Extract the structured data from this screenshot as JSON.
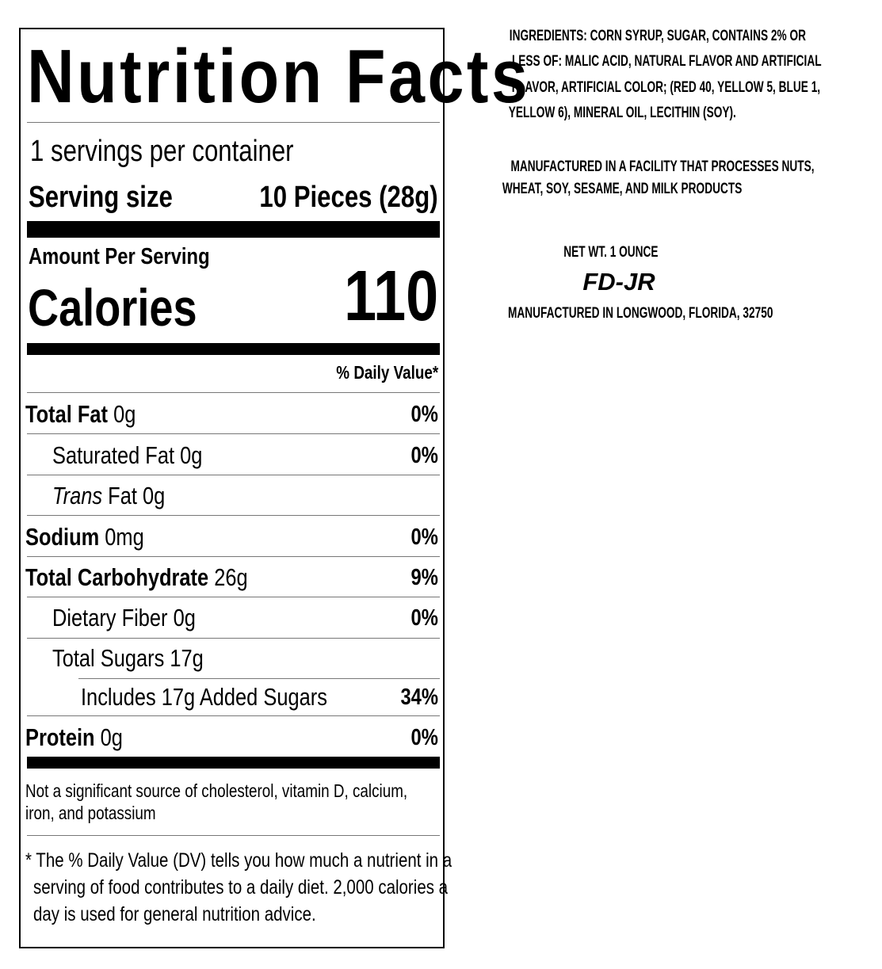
{
  "label": {
    "title": "Nutrition Facts",
    "servings_per_container": "1 servings per container",
    "serving_size_label": "Serving size",
    "serving_size_value": "10 Pieces (28g)",
    "amount_per_serving": "Amount Per Serving",
    "calories_label": "Calories",
    "calories_value": "110",
    "daily_value_header": "% Daily Value*",
    "rows": [
      {
        "name": "Total Fat",
        "amount": "0g",
        "dv": "0%"
      },
      {
        "name": "Saturated Fat",
        "amount": "0g",
        "dv": "0%"
      },
      {
        "name": "Trans",
        "suffix": "Fat 0g",
        "dv": ""
      },
      {
        "name": "Sodium",
        "amount": "0mg",
        "dv": "0%"
      },
      {
        "name": "Total Carbohydrate",
        "amount": "26g",
        "dv": "9%"
      },
      {
        "name": "Dietary Fiber",
        "amount": "0g",
        "dv": "0%"
      },
      {
        "name": "Total Sugars",
        "amount": "17g",
        "dv": ""
      },
      {
        "name": "Includes 17g Added Sugars",
        "amount": "",
        "dv": "34%"
      },
      {
        "name": "Protein",
        "amount": "0g",
        "dv": "0%"
      }
    ],
    "not_significant": [
      "Not a significant source of cholesterol, vitamin D, calcium,",
      "iron, and potassium"
    ],
    "footnote": [
      "* The % Daily Value (DV) tells you how much a nutrient in a",
      "serving of food contributes to a daily diet. 2,000 calories a",
      "day is used for general nutrition advice."
    ]
  },
  "side": {
    "ingredients": [
      "INGREDIENTS: CORN SYRUP, SUGAR, CONTAINS 2% OR",
      "LESS OF: MALIC ACID, NATURAL FLAVOR AND ARTIFICIAL",
      "FLAVOR, ARTIFICIAL COLOR; (RED 40, YELLOW 5, BLUE 1,",
      "YELLOW 6), MINERAL OIL, LECITHIN (SOY)."
    ],
    "allergen": [
      "MANUFACTURED IN A FACILITY THAT PROCESSES NUTS,",
      "WHEAT, SOY, SESAME, AND MILK PRODUCTS"
    ],
    "net_wt": "NET WT. 1 OUNCE",
    "brand": "FD-JR",
    "manufactured": "MANUFACTURED IN LONGWOOD, FLORIDA, 32750"
  }
}
